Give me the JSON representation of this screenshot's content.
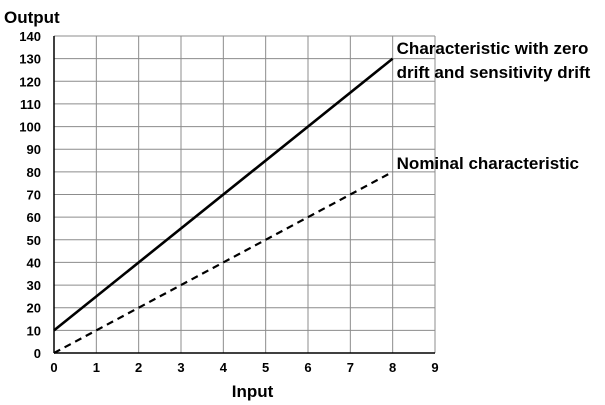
{
  "chart_data": {
    "type": "line",
    "title": "",
    "xlabel": "Input",
    "ylabel": "Output",
    "xlim": [
      0,
      9
    ],
    "ylim": [
      0,
      140
    ],
    "xticks": [
      0,
      1,
      2,
      3,
      4,
      5,
      6,
      7,
      8,
      9
    ],
    "yticks": [
      0,
      10,
      20,
      30,
      40,
      50,
      60,
      70,
      80,
      90,
      100,
      110,
      120,
      130,
      140
    ],
    "grid": true,
    "legend": "none",
    "series": [
      {
        "name": "Characteristic with zero drift and sensitivity drift",
        "name_lines": [
          "Characteristic with zero",
          "drift and sensitivity drift"
        ],
        "style": "solid",
        "color": "#000000",
        "x": [
          0,
          8
        ],
        "y": [
          10,
          130
        ]
      },
      {
        "name": "Nominal characteristic",
        "name_lines": [
          "Nominal characteristic"
        ],
        "style": "dashed",
        "color": "#000000",
        "x": [
          0,
          8
        ],
        "y": [
          0,
          80
        ]
      }
    ]
  }
}
